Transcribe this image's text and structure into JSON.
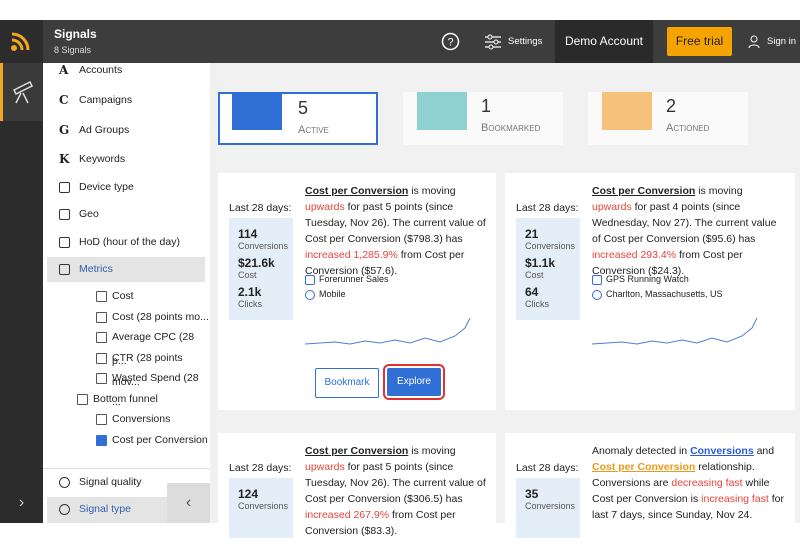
{
  "header": {
    "app_name": "Signals",
    "app_sub": "8 Signals",
    "settings": "Settings",
    "account": "Demo Account",
    "trial": "Free trial",
    "signin": "Sign in"
  },
  "sidebar": {
    "items": [
      {
        "icon": "A",
        "label": "Accounts"
      },
      {
        "icon": "C",
        "label": "Campaigns"
      },
      {
        "icon": "G",
        "label": "Ad Groups"
      },
      {
        "icon": "K",
        "label": "Keywords"
      },
      {
        "label": "Device type"
      },
      {
        "label": "Geo"
      },
      {
        "label": "HoD (hour of the day)"
      },
      {
        "label": "Metrics"
      }
    ],
    "checks": [
      {
        "label": "Cost",
        "checked": false
      },
      {
        "label": "Cost (28 points mo...",
        "checked": false
      },
      {
        "label": "Average CPC (28 p...",
        "checked": false
      },
      {
        "label": "CTR (28 points mov...",
        "checked": false
      },
      {
        "label": "Wasted Spend (28 ...",
        "checked": false
      },
      {
        "label": "Bottom funnel",
        "checked": false
      },
      {
        "label": "Conversions",
        "checked": false
      },
      {
        "label": "Cost per Conversion",
        "checked": true
      }
    ],
    "bottom": [
      {
        "label": "Signal quality"
      },
      {
        "label": "Signal type"
      }
    ]
  },
  "tabs": [
    {
      "count": 5,
      "label": "Active"
    },
    {
      "count": 1,
      "label": "Bookmarked"
    },
    {
      "count": 2,
      "label": "Actioned"
    }
  ],
  "cards": [
    {
      "period": "Last 28 days:",
      "stats": [
        {
          "value": "114",
          "label": "Conversions"
        },
        {
          "value": "$21.6k",
          "label": "Cost"
        },
        {
          "value": "2.1k",
          "label": "Clicks"
        }
      ],
      "text": [
        {
          "text": "Cost per Conversion",
          "style": "link"
        },
        {
          "text": " is moving "
        },
        {
          "text": "upwards",
          "style": "red"
        },
        {
          "text": " for past 5 points (since Tuesday, Nov 26). The current value of Cost per Conversion ($798.3) has "
        },
        {
          "text": "increased 1,285.9%",
          "style": "red"
        },
        {
          "text": " from Cost per Conversion ($57.6)."
        }
      ],
      "tags": [
        "Forerunner Sales",
        "Mobile"
      ],
      "buttons": [
        "Bookmark",
        "Explore"
      ]
    },
    {
      "period": "Last 28 days:",
      "stats": [
        {
          "value": "21",
          "label": "Conversions"
        },
        {
          "value": "$1.1k",
          "label": "Cost"
        },
        {
          "value": "64",
          "label": "Clicks"
        }
      ],
      "text": [
        {
          "text": "Cost per Conversion",
          "style": "link"
        },
        {
          "text": " is moving "
        },
        {
          "text": "upwards",
          "style": "red"
        },
        {
          "text": " for past 4 points (since Wednesday, Nov 27). The current value of Cost per Conversion ($95.6) has "
        },
        {
          "text": "increased 293.4%",
          "style": "red"
        },
        {
          "text": " from Cost per Conversion ($24.3)."
        }
      ],
      "tags": [
        "GPS Running Watch",
        "Charlton, Massachusetts, US"
      ]
    },
    {
      "period": "Last 28 days:",
      "stats": [
        {
          "value": "124",
          "label": "Conversions"
        }
      ],
      "text": [
        {
          "text": "Cost per Conversion",
          "style": "link"
        },
        {
          "text": " is moving "
        },
        {
          "text": "upwards",
          "style": "red"
        },
        {
          "text": " for past 5 points (since Tuesday, Nov 26). The current value of Cost per Conversion ($306.5) has "
        },
        {
          "text": "increased 267.9%",
          "style": "red"
        },
        {
          "text": " from Cost per Conversion ($83.3)."
        }
      ]
    },
    {
      "period": "Last 28 days:",
      "stats": [
        {
          "value": "35",
          "label": "Conversions"
        }
      ],
      "text": [
        {
          "text": "Anomaly detected in "
        },
        {
          "text": "Conversions",
          "style": "blue"
        },
        {
          "text": " and "
        },
        {
          "text": "Cost per Conversion",
          "style": "orange"
        },
        {
          "text": " relationship. Conversions are "
        },
        {
          "text": "decreasing fast",
          "style": "red"
        },
        {
          "text": " while Cost per Conversion is "
        },
        {
          "text": "increasing fast",
          "style": "red"
        },
        {
          "text": " for last 7 days, since Sunday, Nov 24."
        }
      ]
    }
  ]
}
